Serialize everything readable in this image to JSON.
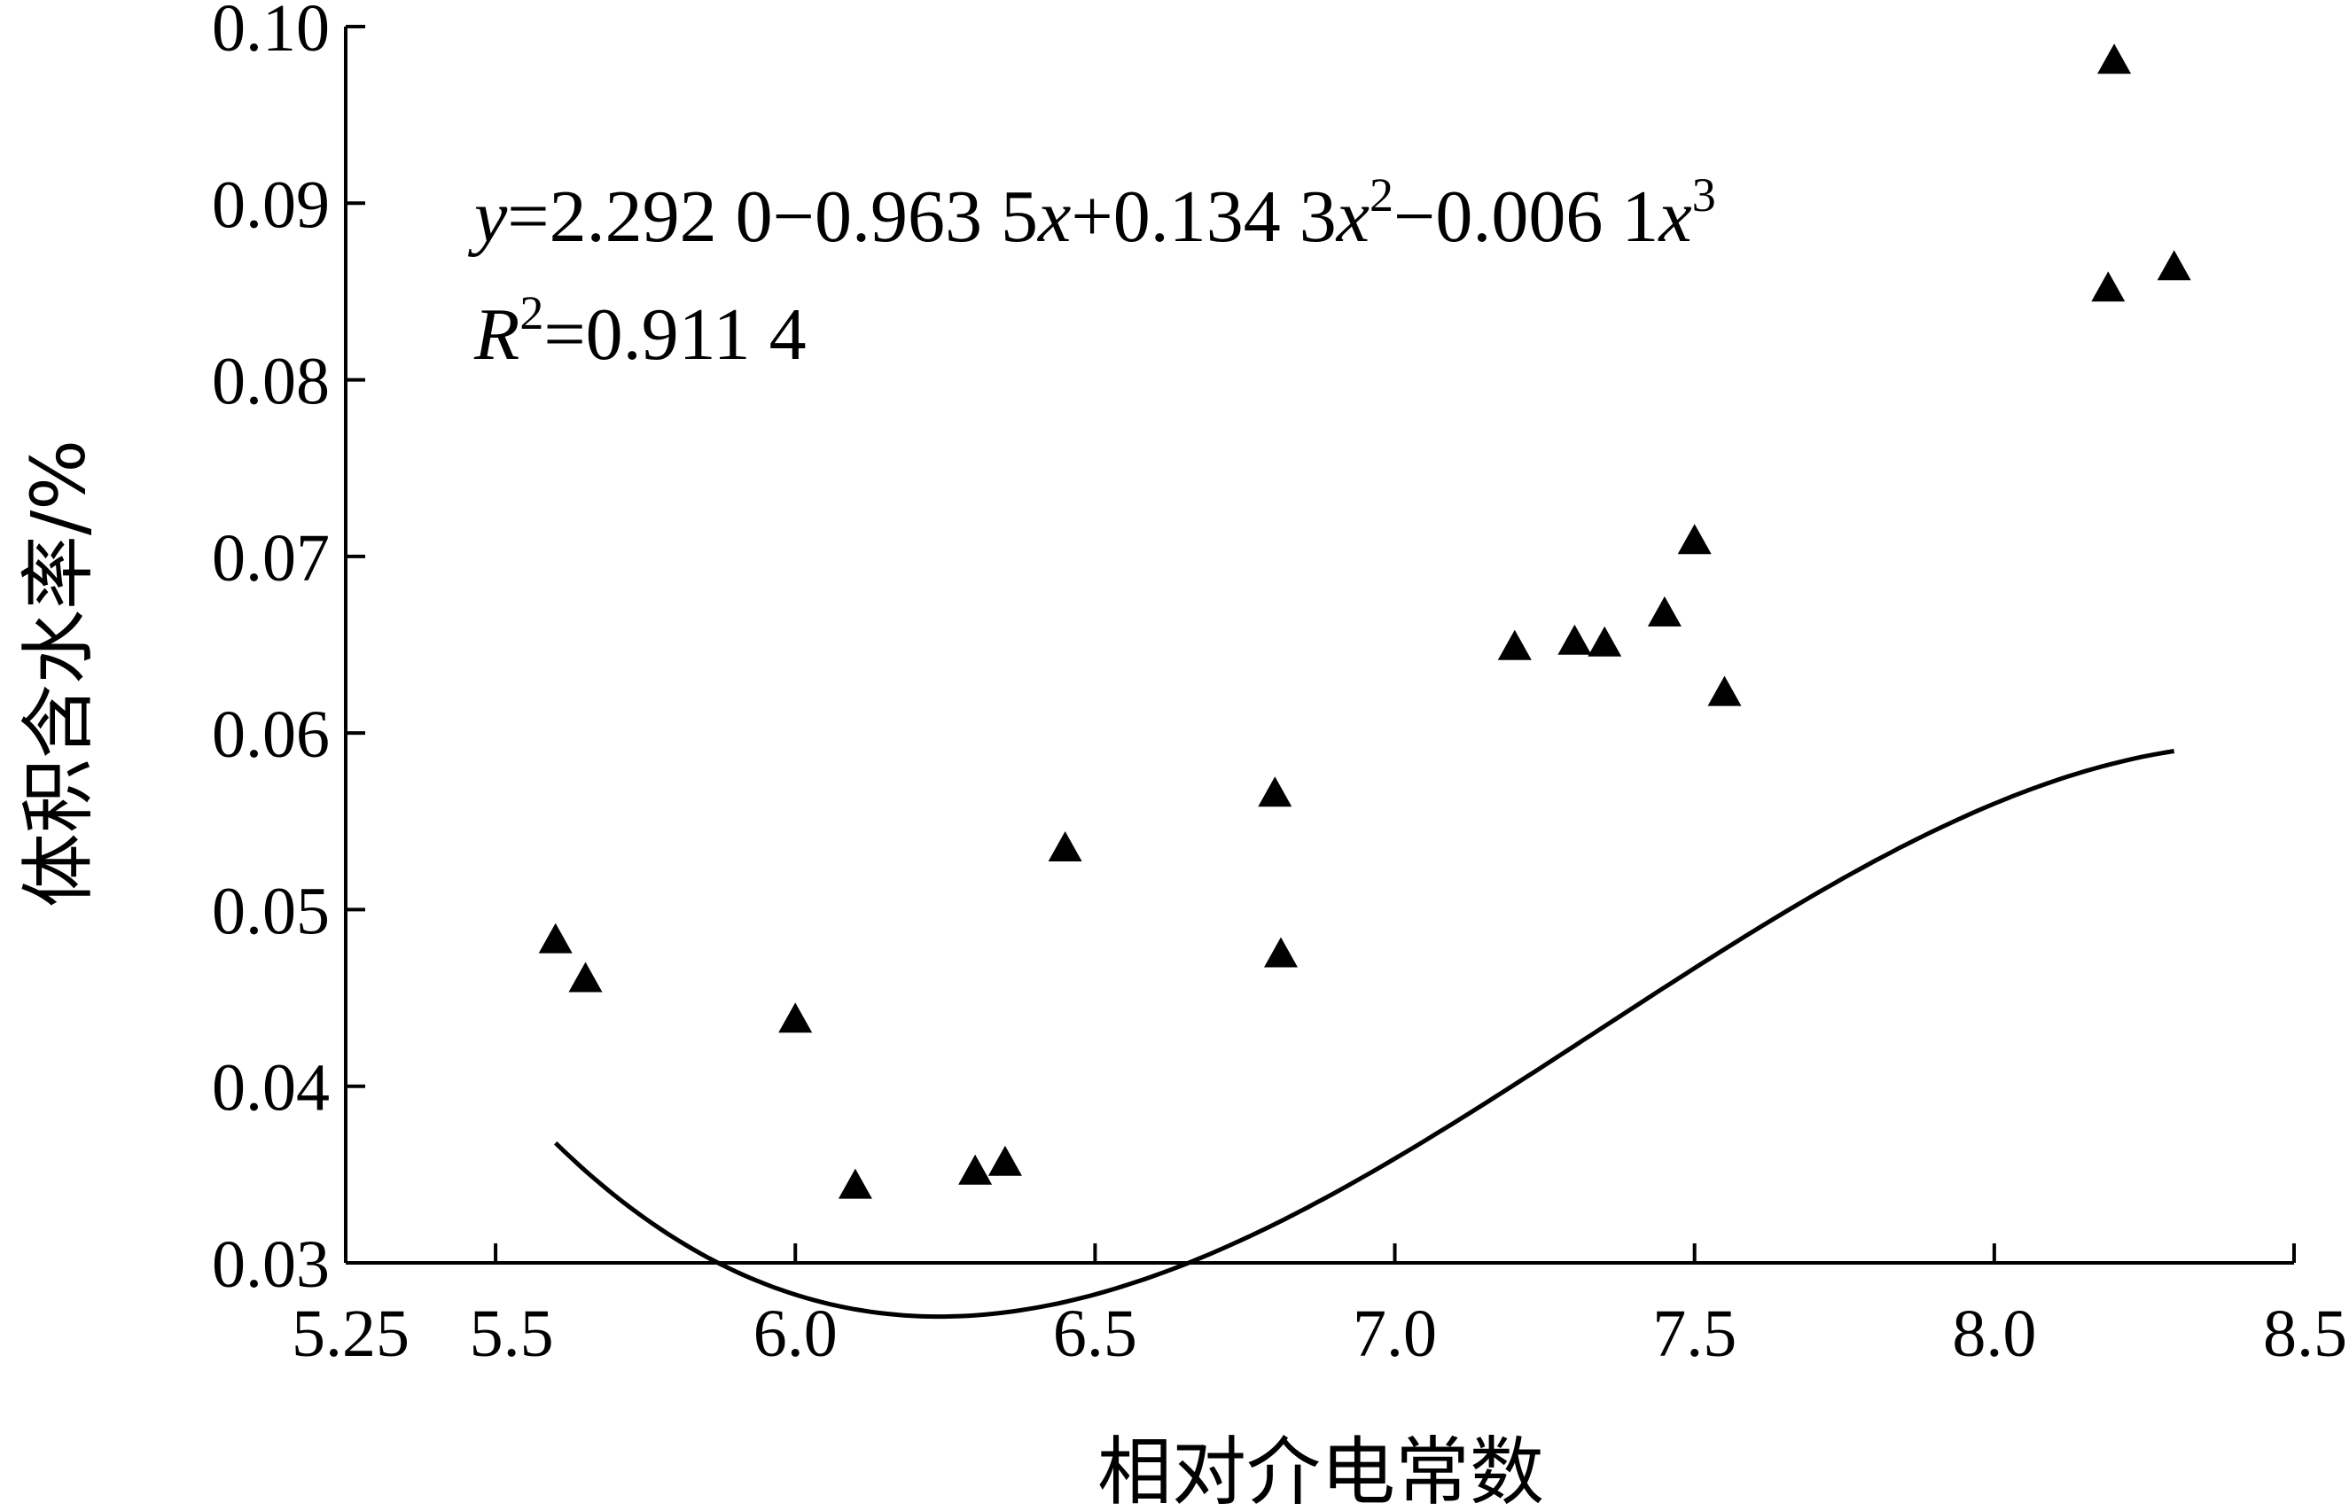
{
  "chart_data": {
    "type": "scatter",
    "xlabel": "相对介电常数",
    "ylabel": "体积含水率/%",
    "xlim": [
      5.25,
      8.5
    ],
    "ylim": [
      0.03,
      0.1
    ],
    "x_tick_values": [
      5.25,
      5.5,
      6.0,
      6.5,
      7.0,
      7.5,
      8.0,
      8.5
    ],
    "x_tick_labels": [
      "5.25",
      "5.5",
      "6.0",
      "6.5",
      "7.0",
      "7.5",
      "8.0",
      "8.5"
    ],
    "y_tick_values": [
      0.03,
      0.04,
      0.05,
      0.06,
      0.07,
      0.08,
      0.09,
      0.1
    ],
    "y_tick_labels": [
      "0.03",
      "0.04",
      "0.05",
      "0.06",
      "0.07",
      "0.08",
      "0.09",
      "0.10"
    ],
    "grid": false,
    "marker": "triangle",
    "points": [
      {
        "x": 5.6,
        "y": 0.0483
      },
      {
        "x": 5.65,
        "y": 0.0461
      },
      {
        "x": 6.0,
        "y": 0.0438
      },
      {
        "x": 6.1,
        "y": 0.0344
      },
      {
        "x": 6.3,
        "y": 0.0352
      },
      {
        "x": 6.35,
        "y": 0.0357
      },
      {
        "x": 6.45,
        "y": 0.0535
      },
      {
        "x": 6.8,
        "y": 0.0566
      },
      {
        "x": 6.81,
        "y": 0.0475
      },
      {
        "x": 7.2,
        "y": 0.0649
      },
      {
        "x": 7.3,
        "y": 0.0652
      },
      {
        "x": 7.35,
        "y": 0.0651
      },
      {
        "x": 7.45,
        "y": 0.0668
      },
      {
        "x": 7.5,
        "y": 0.0709
      },
      {
        "x": 7.55,
        "y": 0.0623
      },
      {
        "x": 8.19,
        "y": 0.0852
      },
      {
        "x": 8.2,
        "y": 0.0981
      },
      {
        "x": 8.3,
        "y": 0.0864
      }
    ],
    "fit": {
      "type": "cubic",
      "x_range": [
        5.6,
        8.3
      ],
      "coefficients": [
        2.292,
        -0.9635,
        0.1343,
        -0.0061
      ]
    },
    "annotations": {
      "equation": {
        "y": "y",
        "body1": "=2.292 0−0.963 5",
        "x1": "x",
        "body2": "+0.134 3",
        "x2": "x",
        "sup2": "2",
        "body3": "−0.006 1",
        "x3": "x",
        "sup3": "3"
      },
      "r2": {
        "r": "R",
        "sup": "2",
        "value": "=0.911 4"
      }
    }
  }
}
